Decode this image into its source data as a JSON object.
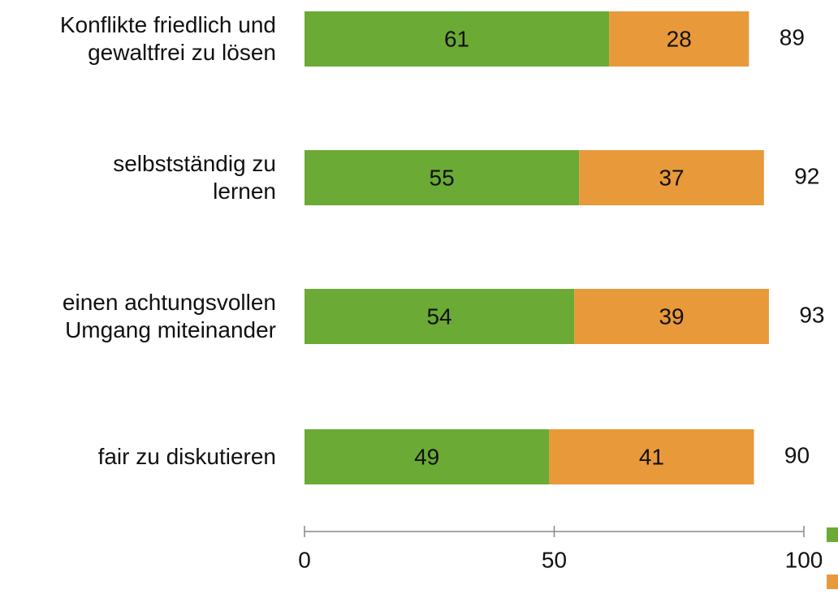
{
  "chart_data": {
    "type": "stacked-bar-horizontal",
    "categories": [
      "Konflikte friedlich und\ngewaltfrei zu lösen",
      "selbstständig zu\nlernen",
      "einen achtungsvollen\nUmgang miteinander",
      "fair zu diskutieren"
    ],
    "series": [
      {
        "color": "#6aaa35",
        "values": [
          61,
          55,
          54,
          49
        ]
      },
      {
        "color": "#e8993a",
        "values": [
          28,
          37,
          39,
          41
        ]
      }
    ],
    "totals": [
      89,
      92,
      93,
      90
    ],
    "xlim": [
      0,
      100
    ],
    "xticks": [
      0,
      50,
      100
    ]
  }
}
